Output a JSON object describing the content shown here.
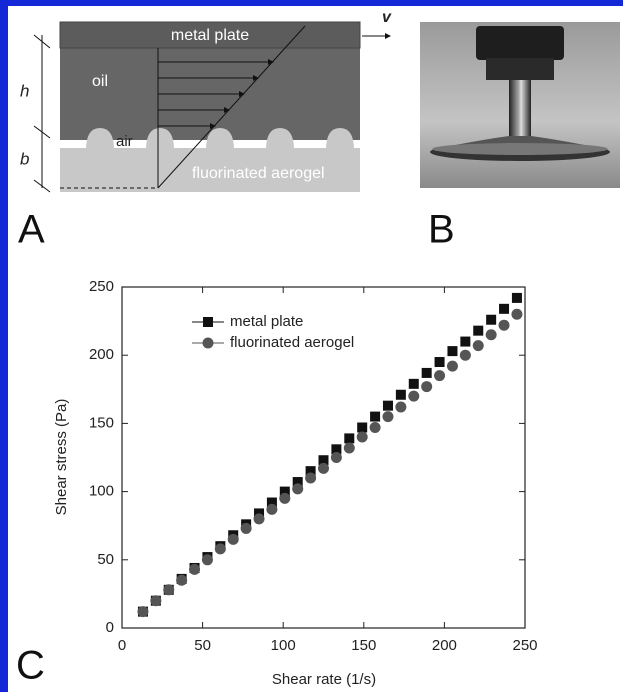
{
  "panels": [
    "A",
    "B",
    "C"
  ],
  "panel_a": {
    "top_label": "metal plate",
    "velocity": "v",
    "h": "h",
    "b": "b",
    "oil": "oil",
    "air": "air",
    "bottom_label": "fluorinated aerogel"
  },
  "chart_data": {
    "type": "scatter",
    "x_label": "Shear rate (1/s)",
    "y_label": "Shear stress (Pa)",
    "x": [
      13,
      21,
      29,
      37,
      45,
      53,
      61,
      69,
      77,
      85,
      93,
      101,
      109,
      117,
      125,
      133,
      141,
      149,
      157,
      165,
      173,
      181,
      189,
      197,
      205,
      213,
      221,
      229,
      237,
      245
    ],
    "series": [
      {
        "name": "metal plate",
        "color": "#111111",
        "marker": "square",
        "values": [
          12,
          20,
          28,
          36,
          44,
          52,
          60,
          68,
          76,
          84,
          92,
          100,
          107,
          115,
          123,
          131,
          139,
          147,
          155,
          163,
          171,
          179,
          187,
          195,
          203,
          210,
          218,
          226,
          234,
          242
        ]
      },
      {
        "name": "fluorinated aerogel",
        "color": "#555555",
        "marker": "circle",
        "values": [
          12,
          20,
          28,
          35,
          43,
          50,
          58,
          65,
          73,
          80,
          87,
          95,
          102,
          110,
          117,
          125,
          132,
          140,
          147,
          155,
          162,
          170,
          177,
          185,
          192,
          200,
          207,
          215,
          222,
          230
        ]
      }
    ],
    "xlim": [
      0,
      250
    ],
    "xticks": [
      0,
      50,
      100,
      150,
      200,
      250
    ],
    "ylim": [
      0,
      250
    ],
    "yticks": [
      0,
      50,
      100,
      150,
      200,
      250
    ],
    "legend": "upper-left",
    "grid": false
  }
}
